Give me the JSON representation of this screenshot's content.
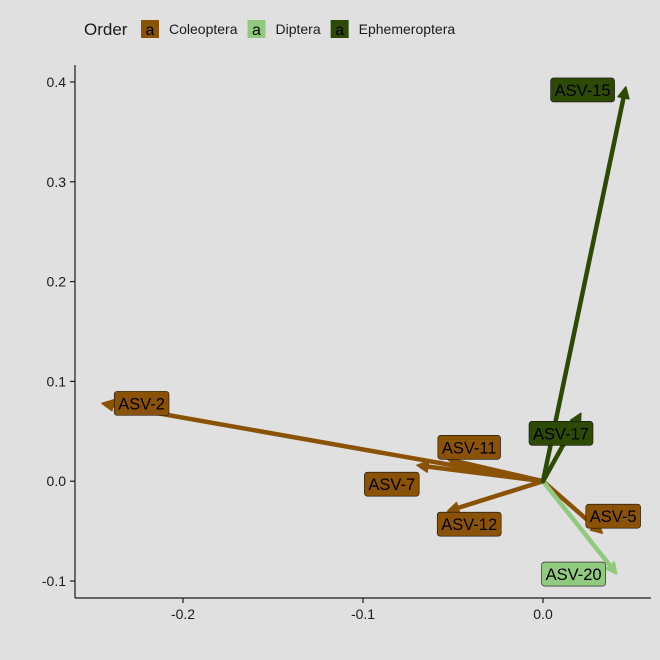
{
  "chart_data": {
    "type": "biplot-arrows",
    "title": "",
    "xlabel": "",
    "ylabel": "",
    "xlim": [
      -0.26,
      0.06
    ],
    "ylim": [
      -0.117,
      0.417
    ],
    "x_ticks": [
      -0.2,
      -0.1,
      0.0
    ],
    "x_tick_labels": [
      "-0.2",
      "-0.1",
      "0.0"
    ],
    "y_ticks": [
      -0.1,
      0.0,
      0.1,
      0.2,
      0.3,
      0.4
    ],
    "y_tick_labels": [
      "-0.1",
      "0.0",
      "0.1",
      "0.2",
      "0.3",
      "0.4"
    ],
    "grid": false,
    "legend": {
      "title": "Order",
      "position": "top",
      "key_glyph": "a",
      "entries": [
        {
          "name": "Coleoptera",
          "color": "#8a5204"
        },
        {
          "name": "Diptera",
          "color": "#91c97f"
        },
        {
          "name": "Ephemeroptera",
          "color": "#2c4a04"
        }
      ]
    },
    "origin": [
      0,
      0
    ],
    "arrows": [
      {
        "label": "ASV-2",
        "order": "Coleoptera",
        "x": -0.245,
        "y": 0.078
      },
      {
        "label": "ASV-11",
        "order": "Coleoptera",
        "x": -0.053,
        "y": 0.022
      },
      {
        "label": "ASV-7",
        "order": "Coleoptera",
        "x": -0.07,
        "y": 0.016
      },
      {
        "label": "ASV-12",
        "order": "Coleoptera",
        "x": -0.053,
        "y": -0.03
      },
      {
        "label": "ASV-5",
        "order": "Coleoptera",
        "x": 0.033,
        "y": -0.052
      },
      {
        "label": "ASV-20",
        "order": "Diptera",
        "x": 0.041,
        "y": -0.093
      },
      {
        "label": "ASV-15",
        "order": "Ephemeroptera",
        "x": 0.046,
        "y": 0.395
      },
      {
        "label": "ASV-17",
        "order": "Ephemeroptera",
        "x": 0.021,
        "y": 0.068
      }
    ],
    "labels": [
      {
        "text": "ASV-2",
        "order": "Coleoptera",
        "x": -0.223,
        "y": 0.078
      },
      {
        "text": "ASV-11",
        "order": "Coleoptera",
        "x": -0.041,
        "y": 0.034
      },
      {
        "text": "ASV-7",
        "order": "Coleoptera",
        "x": -0.084,
        "y": -0.003
      },
      {
        "text": "ASV-12",
        "order": "Coleoptera",
        "x": -0.041,
        "y": -0.043
      },
      {
        "text": "ASV-5",
        "order": "Coleoptera",
        "x": 0.039,
        "y": -0.035
      },
      {
        "text": "ASV-20",
        "order": "Diptera",
        "x": 0.017,
        "y": -0.093
      },
      {
        "text": "ASV-15",
        "order": "Ephemeroptera",
        "x": 0.022,
        "y": 0.392
      },
      {
        "text": "ASV-17",
        "order": "Ephemeroptera",
        "x": 0.01,
        "y": 0.048
      }
    ]
  }
}
